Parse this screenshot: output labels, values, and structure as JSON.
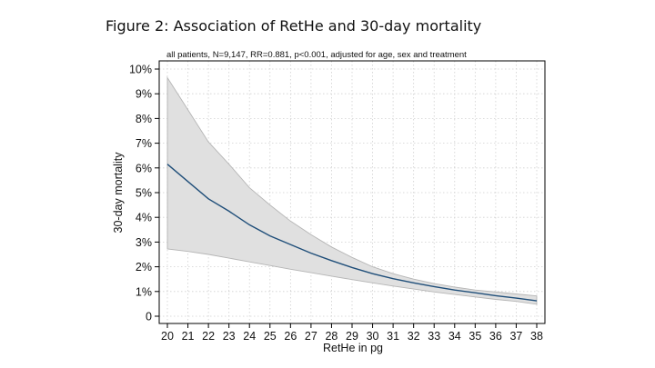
{
  "figure_title": "Figure 2: Association of RetHe and 30-day mortality",
  "chart_data": {
    "type": "line",
    "title": "Figure 2: Association of RetHe and 30-day mortality",
    "subtitle": "all patients, N=9,147, RR=0.881, p<0.001, adjusted for age, sex and treatment",
    "xlabel": "RetHe in pg",
    "ylabel": "30-day mortality",
    "xlim": [
      20,
      38
    ],
    "ylim": [
      0,
      10
    ],
    "x_ticks": [
      20,
      21,
      22,
      23,
      24,
      25,
      26,
      27,
      28,
      29,
      30,
      31,
      32,
      33,
      34,
      35,
      36,
      37,
      38
    ],
    "y_ticks": [
      0,
      1,
      2,
      3,
      4,
      5,
      6,
      7,
      8,
      9,
      10
    ],
    "y_tick_labels": [
      "0",
      "1%",
      "2%",
      "3%",
      "4%",
      "5%",
      "6%",
      "7%",
      "8%",
      "9%",
      "10%"
    ],
    "grid": true,
    "legend": "none",
    "colors": {
      "line": "#1f4e79",
      "band_fill": "#e0e0e0",
      "band_stroke": "#b5b5b5",
      "grid": "#d0d0d0",
      "frame": "#000000"
    },
    "x": [
      20,
      21,
      22,
      23,
      24,
      25,
      26,
      27,
      28,
      29,
      30,
      31,
      32,
      33,
      34,
      35,
      36,
      37,
      38
    ],
    "series": [
      {
        "values": [
          6.15,
          5.45,
          4.75,
          4.25,
          3.7,
          3.25,
          2.9,
          2.55,
          2.25,
          1.97,
          1.72,
          1.52,
          1.35,
          1.2,
          1.06,
          0.95,
          0.83,
          0.73,
          0.62
        ]
      }
    ],
    "band": {
      "upper": [
        9.65,
        8.35,
        7.05,
        6.15,
        5.2,
        4.5,
        3.85,
        3.3,
        2.8,
        2.38,
        2.0,
        1.72,
        1.5,
        1.32,
        1.18,
        1.06,
        0.98,
        0.9,
        0.82
      ],
      "lower": [
        2.72,
        2.62,
        2.5,
        2.35,
        2.2,
        2.05,
        1.9,
        1.76,
        1.62,
        1.48,
        1.35,
        1.22,
        1.1,
        0.98,
        0.88,
        0.78,
        0.68,
        0.6,
        0.48
      ]
    }
  }
}
